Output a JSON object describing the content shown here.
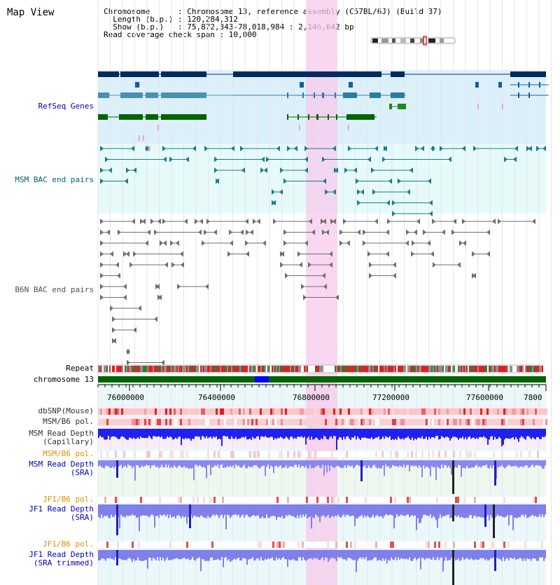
{
  "header": {
    "title": "Map View",
    "info_lines": [
      "Chromosome      : Chromosome 13, reference assembly (C57BL/6J) (Build 37)",
      "  Length (b.p.) : 120,284,312",
      "  Show (b.p.)   : 75,872,343-78,018,984 : 2,146,642 bp",
      "Read coverage check span : 10,000"
    ]
  },
  "tracks": {
    "refseq": "RefSeq Genes",
    "msm_bac": "MSM BAC end pairs",
    "b6n_bac": "B6N BAC end pairs",
    "repeat": "Repeat",
    "chromosome": "chromosome 13",
    "dbsnp": "dbSNP(Mouse)",
    "msm_b6_pol_1": "MSM/B6 pol.",
    "msm_depth_cap_1": "MSM Read Depth",
    "msm_depth_cap_2": "(Capillary)",
    "msm_b6_pol_2": "MSM/B6 pol.",
    "msm_depth_sra_1": "MSM Read Depth",
    "msm_depth_sra_2": "(SRA)",
    "jf1_b6_pol_1": "JF1/B6 pol.",
    "jf1_depth_sra_1": "JF1 Read Depth",
    "jf1_depth_sra_2": "(SRA)",
    "jf1_b6_pol_2": "JF1/B6 pol.",
    "jf1_depth_trim_1": "JF1 Read Depth",
    "jf1_depth_trim_2": "(SRA trimmed)"
  },
  "axis": {
    "ticks": [
      "76000000",
      "76400000",
      "76800000",
      "77200000",
      "77600000",
      "7800"
    ]
  },
  "colors": {
    "refseq_bg": "#dcf0fa",
    "msm_bac_bg": "#e6fafa",
    "highlight": "#f8c8ec",
    "label_blue": "#0000c0",
    "label_teal": "#006080",
    "label_orange": "#e09000",
    "chrom_green": "#006400",
    "chrom_blue": "#0000ff"
  }
}
